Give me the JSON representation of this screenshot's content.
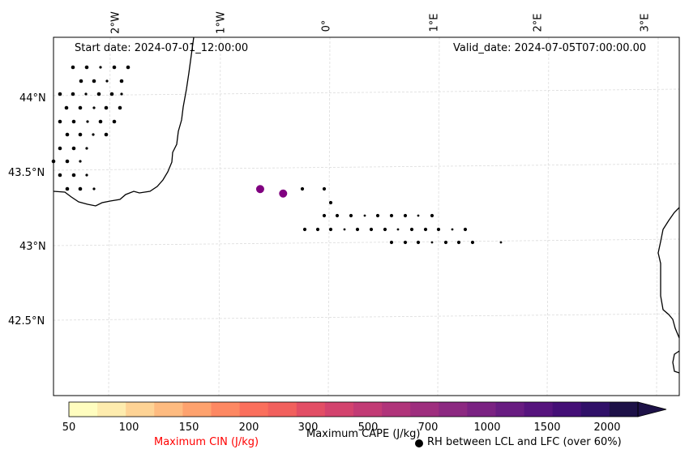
{
  "map": {
    "start_date": "Start date: 2024-07-01_12:00:00",
    "valid_date": "Valid_date: 2024-07-05T07:00:00.00",
    "lon_labels": [
      "2°W",
      "1°W",
      "0°",
      "1°E",
      "2°E",
      "3°E"
    ],
    "lat_labels": [
      "44°N",
      "43.5°N",
      "43°N",
      "42.5°N"
    ],
    "highlight_color": "#800080",
    "highlight_points": [
      {
        "lon": -0.63,
        "lat": 43.39
      },
      {
        "lon": -0.42,
        "lat": 43.36
      }
    ]
  },
  "colorbar": {
    "ticks": [
      "50",
      "100",
      "150",
      "200",
      "300",
      "500",
      "700",
      "1000",
      "1500",
      "2000"
    ],
    "colors": [
      "#fffdbf",
      "#feecae",
      "#fed395",
      "#febb80",
      "#fea26e",
      "#fd8862",
      "#fa6f5c",
      "#f1605d",
      "#e24e65",
      "#d3436e",
      "#c23b75",
      "#b0347a",
      "#9e2e7e",
      "#8c2981",
      "#7a2282",
      "#681c81",
      "#56147d",
      "#440f76",
      "#301068",
      "#1d1147"
    ],
    "cin_label": "Maximum CIN (J/kg)",
    "cin_color": "#ff0000",
    "cape_label": "Maximum CAPE (J/kg)",
    "rh_label": "RH between LCL and LFC (over 60%)"
  }
}
